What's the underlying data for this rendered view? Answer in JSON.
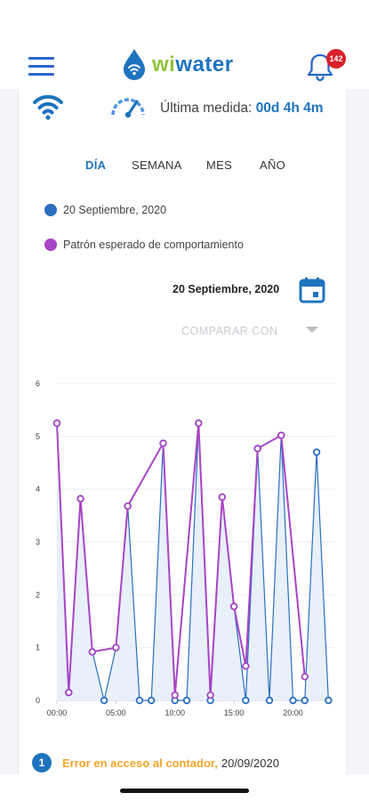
{
  "header": {
    "menu_icon": "hamburger-menu-icon",
    "logo": {
      "icon": "water-drop-wifi-icon",
      "text_wi": "wi",
      "text_water": "water"
    },
    "notifications": {
      "icon": "bell-icon",
      "count": "142"
    }
  },
  "status": {
    "wifi_icon": "wifi-icon",
    "gauge_icon": "gauge-icon",
    "last_measure_label": "Última medida:",
    "last_measure_value": "00d 4h 4m"
  },
  "tabs": [
    {
      "label": "DÍA",
      "active": true
    },
    {
      "label": "SEMANA",
      "active": false
    },
    {
      "label": "MES",
      "active": false
    },
    {
      "label": "AÑO",
      "active": false
    }
  ],
  "legend": [
    {
      "label": "20 Septiembre, 2020",
      "color": "#2a6fc0"
    },
    {
      "label": "Patrón esperado de comportamiento",
      "color": "#a845c4"
    }
  ],
  "date_selector": {
    "value": "20 Septiembre, 2020",
    "icon": "calendar-icon"
  },
  "compare": {
    "label": "COMPARAR CON",
    "icon": "caret-down-icon"
  },
  "chart_data": {
    "type": "line",
    "x_tick_labels": [
      "00:00",
      "05:00",
      "10:00",
      "15:00",
      "20:00"
    ],
    "x_tick_hours": [
      0,
      5,
      10,
      15,
      20
    ],
    "y_ticks": [
      0,
      1,
      2,
      3,
      4,
      5,
      6
    ],
    "xlim": [
      0,
      23.5
    ],
    "ylim": [
      0,
      6
    ],
    "grid": true,
    "series": [
      {
        "color": "#2a6fc0",
        "fill": "#e6eef9",
        "x": [
          0,
          1,
          2,
          3,
          4,
          5,
          6,
          7,
          8,
          9,
          10,
          11,
          12,
          13,
          14,
          15,
          16,
          17,
          18,
          19,
          20,
          21,
          22,
          23
        ],
        "values": [
          5.25,
          0.15,
          3.82,
          0.92,
          0.0,
          1.0,
          3.68,
          0.0,
          0.0,
          4.87,
          0.0,
          0.0,
          5.25,
          0.0,
          3.85,
          1.78,
          0.0,
          4.77,
          0.0,
          5.02,
          0.0,
          0.0,
          4.7,
          0.0
        ]
      },
      {
        "color": "#a845c4",
        "x": [
          0,
          1,
          2,
          3,
          5,
          6,
          9,
          10,
          12,
          13,
          14,
          15,
          16,
          17,
          19,
          21
        ],
        "values": [
          5.25,
          0.15,
          3.82,
          0.92,
          1.0,
          3.68,
          4.87,
          0.1,
          5.25,
          0.1,
          3.85,
          1.78,
          0.65,
          4.77,
          5.02,
          0.45
        ]
      }
    ]
  },
  "alert": {
    "number": "1",
    "text": "Error en acceso al contador,",
    "date": "20/09/2020"
  }
}
